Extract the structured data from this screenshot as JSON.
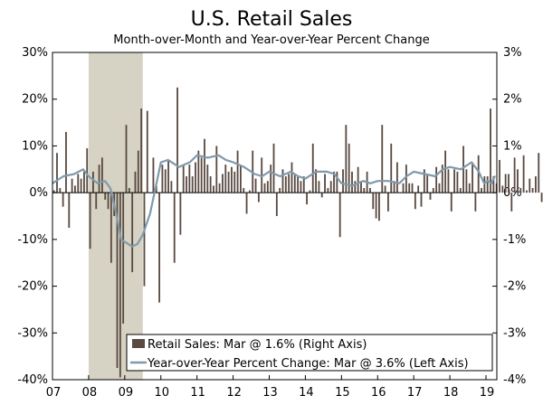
{
  "chart_data": {
    "type": "bar+line",
    "title": "U.S. Retail Sales",
    "subtitle": "Month-over-Month and Year-over-Year Percent Change",
    "shaded_region": {
      "start": 2008.0,
      "end": 2009.5,
      "color": "#d6d2c4"
    },
    "x_ticks": [
      "07",
      "08",
      "09",
      "10",
      "11",
      "12",
      "13",
      "14",
      "15",
      "16",
      "17",
      "18",
      "19"
    ],
    "x_tick_values": [
      2007,
      2008,
      2009,
      2010,
      2011,
      2012,
      2013,
      2014,
      2015,
      2016,
      2017,
      2018,
      2019
    ],
    "xlim": [
      2007.0,
      2019.3
    ],
    "left_axis": {
      "ticks": [
        "30%",
        "20%",
        "10%",
        "0%",
        "-10%",
        "-20%",
        "-30%",
        "-40%"
      ],
      "tick_values": [
        30,
        20,
        10,
        0,
        -10,
        -20,
        -30,
        -40
      ],
      "ylim": [
        -40,
        30
      ]
    },
    "right_axis": {
      "ticks": [
        "3%",
        "2%",
        "1%",
        "0%",
        "-1%",
        "-2%",
        "-3%",
        "-4%"
      ],
      "tick_values": [
        3,
        2,
        1,
        0,
        -1,
        -2,
        -3,
        -4
      ],
      "ylim": [
        -4,
        3
      ]
    },
    "series": [
      {
        "name": "Retail Sales: Mar @ 1.6% (Right Axis)",
        "kind": "bar",
        "axis": "right",
        "color": "#5a4a42",
        "start": 2007.0,
        "step": 0.0833333,
        "values": [
          0.05,
          0.85,
          0.1,
          -0.3,
          1.3,
          -0.75,
          0.3,
          0.15,
          0.4,
          0.3,
          0.45,
          0.95,
          -1.2,
          0.45,
          -0.35,
          0.6,
          0.75,
          -0.15,
          -0.35,
          -1.5,
          -0.5,
          -3.75,
          -3.95,
          -2.8,
          1.45,
          0.1,
          -1.7,
          0.45,
          0.9,
          1.8,
          -2.0,
          1.75,
          0.0,
          0.75,
          0.15,
          -2.35,
          0.6,
          0.5,
          0.7,
          0.25,
          -1.5,
          2.25,
          -0.9,
          0.6,
          0.35,
          0.6,
          0.35,
          0.65,
          0.9,
          0.75,
          1.15,
          0.6,
          0.35,
          0.15,
          1.0,
          0.2,
          0.4,
          0.6,
          0.45,
          0.55,
          0.45,
          0.9,
          0.6,
          0.1,
          -0.45,
          0.05,
          0.9,
          0.3,
          -0.2,
          0.75,
          0.2,
          0.25,
          0.6,
          1.05,
          -0.5,
          0.1,
          0.5,
          0.35,
          0.4,
          0.65,
          0.4,
          0.35,
          0.25,
          0.35,
          -0.25,
          0.05,
          1.05,
          0.5,
          0.25,
          -0.1,
          0.4,
          0.1,
          0.25,
          0.45,
          0.45,
          -0.95,
          0.5,
          1.45,
          1.05,
          0.45,
          0.25,
          0.55,
          0.25,
          0.1,
          0.45,
          0.1,
          -0.35,
          -0.55,
          -0.6,
          1.45,
          0.15,
          -0.4,
          1.05,
          0.25,
          0.65,
          0.0,
          0.2,
          0.6,
          0.2,
          0.2,
          -0.35,
          0.15,
          -0.3,
          0.5,
          0.4,
          -0.15,
          0.1,
          0.55,
          0.2,
          0.6,
          0.9,
          0.5,
          -0.4,
          0.5,
          0.45,
          0.1,
          1.0,
          0.5,
          0.2,
          0.65,
          -0.4,
          0.8,
          0.1,
          0.35,
          0.35,
          1.8,
          0.35,
          0.2,
          0.7,
          0.15,
          0.4,
          0.4,
          -0.4,
          0.75,
          0.5,
          0.1,
          0.8,
          0.05,
          0.3,
          0.1,
          0.35,
          0.85,
          -0.2,
          0.1,
          0.2,
          0.05,
          -1.6,
          0.95,
          -0.2,
          1.6
        ]
      },
      {
        "name": "Year-over-Year Percent Change: Mar @ 3.6% (Left Axis)",
        "kind": "line",
        "axis": "left",
        "color": "#7f9aab",
        "points": [
          [
            2007.0,
            2.0
          ],
          [
            2007.3,
            3.5
          ],
          [
            2007.6,
            4.0
          ],
          [
            2007.85,
            5.0
          ],
          [
            2008.0,
            3.5
          ],
          [
            2008.25,
            2.0
          ],
          [
            2008.45,
            2.5
          ],
          [
            2008.6,
            1.0
          ],
          [
            2008.75,
            -4.0
          ],
          [
            2008.9,
            -10.0
          ],
          [
            2009.0,
            -10.5
          ],
          [
            2009.2,
            -11.5
          ],
          [
            2009.35,
            -11.0
          ],
          [
            2009.5,
            -9.0
          ],
          [
            2009.7,
            -4.5
          ],
          [
            2009.85,
            1.0
          ],
          [
            2010.0,
            6.5
          ],
          [
            2010.2,
            7.0
          ],
          [
            2010.5,
            5.5
          ],
          [
            2010.8,
            6.5
          ],
          [
            2011.0,
            8.0
          ],
          [
            2011.3,
            7.5
          ],
          [
            2011.6,
            8.0
          ],
          [
            2011.8,
            7.0
          ],
          [
            2012.0,
            6.5
          ],
          [
            2012.3,
            5.5
          ],
          [
            2012.6,
            4.0
          ],
          [
            2012.8,
            3.5
          ],
          [
            2013.0,
            4.5
          ],
          [
            2013.3,
            3.5
          ],
          [
            2013.6,
            4.5
          ],
          [
            2013.8,
            3.5
          ],
          [
            2014.0,
            3.0
          ],
          [
            2014.3,
            4.5
          ],
          [
            2014.6,
            4.5
          ],
          [
            2014.8,
            4.0
          ],
          [
            2015.0,
            2.0
          ],
          [
            2015.3,
            1.5
          ],
          [
            2015.6,
            2.5
          ],
          [
            2015.8,
            2.0
          ],
          [
            2016.0,
            2.5
          ],
          [
            2016.3,
            2.5
          ],
          [
            2016.6,
            2.0
          ],
          [
            2016.8,
            3.5
          ],
          [
            2017.0,
            4.5
          ],
          [
            2017.3,
            4.0
          ],
          [
            2017.6,
            3.5
          ],
          [
            2017.8,
            5.0
          ],
          [
            2018.0,
            5.5
          ],
          [
            2018.3,
            5.0
          ],
          [
            2018.6,
            6.5
          ],
          [
            2018.8,
            4.5
          ],
          [
            2018.95,
            2.0
          ],
          [
            2019.05,
            2.5
          ],
          [
            2019.15,
            2.0
          ],
          [
            2019.25,
            3.6
          ]
        ]
      }
    ],
    "legend": {
      "placement": "bottom-right"
    },
    "grid": false
  }
}
